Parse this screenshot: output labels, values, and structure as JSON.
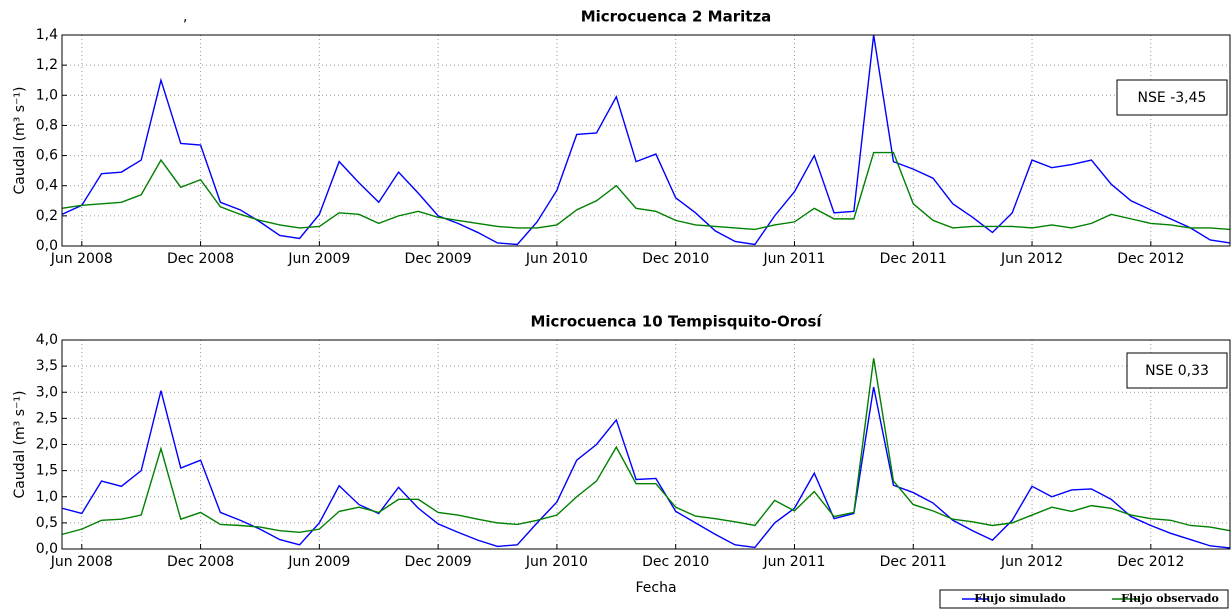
{
  "chart_data": [
    {
      "type": "line",
      "title": "Microcuenca 2 Maritza",
      "note": ",",
      "ylabel": "Caudal (m³ s⁻¹)",
      "annotation": "NSE -3,45",
      "x": [
        "2008-05",
        "2008-06",
        "2008-07",
        "2008-08",
        "2008-09",
        "2008-10",
        "2008-11",
        "2008-12",
        "2009-01",
        "2009-02",
        "2009-03",
        "2009-04",
        "2009-05",
        "2009-06",
        "2009-07",
        "2009-08",
        "2009-09",
        "2009-10",
        "2009-11",
        "2009-12",
        "2010-01",
        "2010-02",
        "2010-03",
        "2010-04",
        "2010-05",
        "2010-06",
        "2010-07",
        "2010-08",
        "2010-09",
        "2010-10",
        "2010-11",
        "2010-12",
        "2011-01",
        "2011-02",
        "2011-03",
        "2011-04",
        "2011-05",
        "2011-06",
        "2011-07",
        "2011-08",
        "2011-09",
        "2011-10",
        "2011-11",
        "2011-12",
        "2012-01",
        "2012-02",
        "2012-03",
        "2012-04",
        "2012-05",
        "2012-06",
        "2012-07",
        "2012-08",
        "2012-09",
        "2012-10",
        "2012-11",
        "2012-12",
        "2013-01",
        "2013-02",
        "2013-03",
        "2013-04"
      ],
      "xlim": [
        "2008-05",
        "2013-04"
      ],
      "xticks": [
        {
          "value": "2008-06",
          "label": "Jun 2008"
        },
        {
          "value": "2008-12",
          "label": "Dec 2008"
        },
        {
          "value": "2009-06",
          "label": "Jun 2009"
        },
        {
          "value": "2009-12",
          "label": "Dec 2009"
        },
        {
          "value": "2010-06",
          "label": "Jun 2010"
        },
        {
          "value": "2010-12",
          "label": "Dec 2010"
        },
        {
          "value": "2011-06",
          "label": "Jun 2011"
        },
        {
          "value": "2011-12",
          "label": "Dec 2011"
        },
        {
          "value": "2012-06",
          "label": "Jun 2012"
        },
        {
          "value": "2012-12",
          "label": "Dec 2012"
        }
      ],
      "ylim": [
        0,
        1.4
      ],
      "yticks": [
        {
          "value": 0,
          "label": "0,0"
        },
        {
          "value": 0.2,
          "label": "0,2"
        },
        {
          "value": 0.4,
          "label": "0,4"
        },
        {
          "value": 0.6,
          "label": "0,6"
        },
        {
          "value": 0.8,
          "label": "0,8"
        },
        {
          "value": 1.0,
          "label": "1,0"
        },
        {
          "value": 1.2,
          "label": "1,2"
        },
        {
          "value": 1.4,
          "label": "1,4"
        }
      ],
      "grid": true,
      "series": [
        {
          "name": "Flujo simulado",
          "color": "#0000ff",
          "values": [
            0.21,
            0.27,
            0.48,
            0.49,
            0.57,
            1.1,
            0.68,
            0.67,
            0.29,
            0.24,
            0.16,
            0.07,
            0.05,
            0.21,
            0.56,
            0.42,
            0.29,
            0.49,
            0.35,
            0.2,
            0.15,
            0.09,
            0.02,
            0.01,
            0.16,
            0.37,
            0.74,
            0.75,
            0.99,
            0.56,
            0.61,
            0.32,
            0.22,
            0.1,
            0.03,
            0.01,
            0.2,
            0.36,
            0.6,
            0.22,
            0.23,
            1.4,
            0.56,
            0.51,
            0.45,
            0.28,
            0.19,
            0.09,
            0.22,
            0.57,
            0.52,
            0.54,
            0.57,
            0.41,
            0.3,
            0.24,
            0.18,
            0.12,
            0.04,
            0.02
          ]
        },
        {
          "name": "Flujo observado",
          "color": "#008000",
          "values": [
            0.25,
            0.27,
            0.28,
            0.29,
            0.34,
            0.57,
            0.39,
            0.44,
            0.26,
            0.21,
            0.17,
            0.14,
            0.12,
            0.13,
            0.22,
            0.21,
            0.15,
            0.2,
            0.23,
            0.19,
            0.17,
            0.15,
            0.13,
            0.12,
            0.12,
            0.14,
            0.24,
            0.3,
            0.4,
            0.25,
            0.23,
            0.17,
            0.14,
            0.13,
            0.12,
            0.11,
            0.14,
            0.16,
            0.25,
            0.18,
            0.18,
            0.62,
            0.62,
            0.28,
            0.17,
            0.12,
            0.13,
            0.13,
            0.13,
            0.12,
            0.14,
            0.12,
            0.15,
            0.21,
            0.18,
            0.15,
            0.14,
            0.12,
            0.12,
            0.11
          ]
        }
      ]
    },
    {
      "type": "line",
      "title": "Microcuenca 10 Tempisquito-Orosí",
      "ylabel": "Caudal (m³ s⁻¹)",
      "xlabel": "Fecha",
      "annotation": "NSE 0,33",
      "legend": "below-right",
      "x": [
        "2008-05",
        "2008-06",
        "2008-07",
        "2008-08",
        "2008-09",
        "2008-10",
        "2008-11",
        "2008-12",
        "2009-01",
        "2009-02",
        "2009-03",
        "2009-04",
        "2009-05",
        "2009-06",
        "2009-07",
        "2009-08",
        "2009-09",
        "2009-10",
        "2009-11",
        "2009-12",
        "2010-01",
        "2010-02",
        "2010-03",
        "2010-04",
        "2010-05",
        "2010-06",
        "2010-07",
        "2010-08",
        "2010-09",
        "2010-10",
        "2010-11",
        "2010-12",
        "2011-01",
        "2011-02",
        "2011-03",
        "2011-04",
        "2011-05",
        "2011-06",
        "2011-07",
        "2011-08",
        "2011-09",
        "2011-10",
        "2011-11",
        "2011-12",
        "2012-01",
        "2012-02",
        "2012-03",
        "2012-04",
        "2012-05",
        "2012-06",
        "2012-07",
        "2012-08",
        "2012-09",
        "2012-10",
        "2012-11",
        "2012-12",
        "2013-01",
        "2013-02",
        "2013-03",
        "2013-04"
      ],
      "xlim": [
        "2008-05",
        "2013-04"
      ],
      "xticks": [
        {
          "value": "2008-06",
          "label": "Jun 2008"
        },
        {
          "value": "2008-12",
          "label": "Dec 2008"
        },
        {
          "value": "2009-06",
          "label": "Jun 2009"
        },
        {
          "value": "2009-12",
          "label": "Dec 2009"
        },
        {
          "value": "2010-06",
          "label": "Jun 2010"
        },
        {
          "value": "2010-12",
          "label": "Dec 2010"
        },
        {
          "value": "2011-06",
          "label": "Jun 2011"
        },
        {
          "value": "2011-12",
          "label": "Dec 2011"
        },
        {
          "value": "2012-06",
          "label": "Jun 2012"
        },
        {
          "value": "2012-12",
          "label": "Dec 2012"
        }
      ],
      "ylim": [
        0,
        4.0
      ],
      "yticks": [
        {
          "value": 0,
          "label": "0,0"
        },
        {
          "value": 0.5,
          "label": "0,5"
        },
        {
          "value": 1.0,
          "label": "1,0"
        },
        {
          "value": 1.5,
          "label": "1,5"
        },
        {
          "value": 2.0,
          "label": "2,0"
        },
        {
          "value": 2.5,
          "label": "2,5"
        },
        {
          "value": 3.0,
          "label": "3,0"
        },
        {
          "value": 3.5,
          "label": "3,5"
        },
        {
          "value": 4.0,
          "label": "4,0"
        }
      ],
      "grid": true,
      "series": [
        {
          "name": "Flujo simulado",
          "color": "#0000ff",
          "values": [
            0.78,
            0.68,
            1.3,
            1.2,
            1.5,
            3.03,
            1.55,
            1.7,
            0.7,
            0.55,
            0.38,
            0.18,
            0.08,
            0.5,
            1.21,
            0.85,
            0.68,
            1.18,
            0.78,
            0.48,
            0.32,
            0.17,
            0.05,
            0.08,
            0.5,
            0.9,
            1.7,
            2.0,
            2.47,
            1.33,
            1.35,
            0.72,
            0.5,
            0.28,
            0.08,
            0.03,
            0.5,
            0.78,
            1.45,
            0.58,
            0.68,
            3.1,
            1.22,
            1.08,
            0.88,
            0.55,
            0.35,
            0.17,
            0.55,
            1.2,
            1.0,
            1.13,
            1.15,
            0.95,
            0.62,
            0.45,
            0.3,
            0.18,
            0.06,
            0.02
          ]
        },
        {
          "name": "Flujo observado",
          "color": "#008000",
          "values": [
            0.28,
            0.38,
            0.55,
            0.57,
            0.65,
            1.92,
            0.57,
            0.7,
            0.47,
            0.45,
            0.42,
            0.35,
            0.32,
            0.38,
            0.72,
            0.8,
            0.7,
            0.95,
            0.95,
            0.7,
            0.65,
            0.57,
            0.5,
            0.47,
            0.55,
            0.65,
            1.0,
            1.3,
            1.95,
            1.25,
            1.25,
            0.8,
            0.63,
            0.58,
            0.52,
            0.45,
            0.93,
            0.73,
            1.1,
            0.62,
            0.7,
            3.65,
            1.3,
            0.85,
            0.73,
            0.57,
            0.52,
            0.45,
            0.5,
            0.65,
            0.8,
            0.72,
            0.83,
            0.78,
            0.65,
            0.58,
            0.55,
            0.45,
            0.42,
            0.35
          ]
        }
      ]
    }
  ]
}
